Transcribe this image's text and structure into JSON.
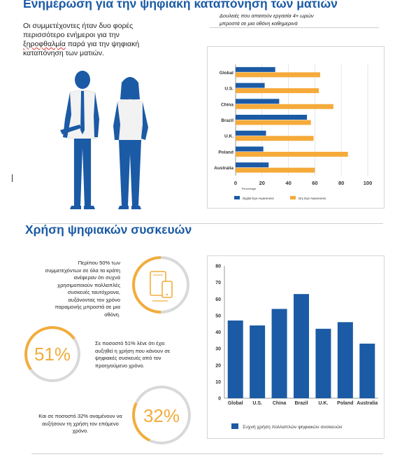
{
  "section1": {
    "title": "Ενημέρωση για την ψηφιακή καταπόνηση των ματιών",
    "intro_part1": "Οι συμμετέχοντες ήταν δυο φορές περισσότερο ενήμεροι για την",
    "intro_squiggly": "ξηροφθαλμία",
    "intro_part2": "παρά για την ψηφιακή καταπόνηση των ματιών.",
    "chart_caption": "Δουλειές που απαιτούν εργασία 4+ ωρών μπροστά σε μια οθόνη καθημερινά"
  },
  "section2": {
    "title": "Χρήση ψηφιακών συσκευών",
    "stat1_text": "Περίπου 50% των συμμετεχόντων σε όλα τα κράτη ανέφεραν ότι συχνά χρησιμοποιούν πολλαπλές συσκευές ταυτόχρονα, αυξάνοντας τον χρόνο παραμονής μπροστά σε μια οθόνη.",
    "stat2_pct": "51%",
    "stat2_text": "Σε ποσοστό 51% λένε ότι έχει αυξηθεί η χρήση που κάνουν σε ψηφιακές συσκευές από τον προηγούμενο χρόνο.",
    "stat3_pct": "32%",
    "stat3_text": "Και σε ποσοστό 32% αναμένουν να αυξήσουν τη χρήση τον επόμενο χρόνο."
  },
  "colors": {
    "blue": "#1b5aa5",
    "orange": "#f5aa3a",
    "ring_grey": "#d9d9d9"
  },
  "chart_data": [
    {
      "type": "bar",
      "orientation": "horizontal",
      "categories": [
        "Global",
        "U.S.",
        "China",
        "Brazil",
        "U.K.",
        "Poland",
        "Australia"
      ],
      "series": [
        {
          "name": "Digital Eye Awareness",
          "values": [
            30,
            22,
            33,
            54,
            23,
            21,
            25
          ]
        },
        {
          "name": "Dry Eye Awareness",
          "values": [
            64,
            63,
            74,
            57,
            59,
            85,
            60
          ]
        }
      ],
      "xlim": [
        0,
        100
      ],
      "xticks": [
        0,
        20,
        40,
        60,
        80,
        100
      ],
      "xlabel": "Percentage",
      "legend_position": "bottom"
    },
    {
      "type": "bar",
      "categories": [
        "Global",
        "U.S.",
        "China",
        "Brazil",
        "U.K.",
        "Poland",
        "Australia"
      ],
      "series": [
        {
          "name": "Συχνή χρήση πολλαπλών ψηφιακών συσκευών",
          "values": [
            47,
            44,
            54,
            63,
            42,
            46,
            33
          ]
        }
      ],
      "ylim": [
        0,
        80
      ],
      "yticks": [
        0,
        10,
        20,
        30,
        40,
        50,
        60,
        70,
        80
      ],
      "legend_position": "bottom"
    }
  ]
}
